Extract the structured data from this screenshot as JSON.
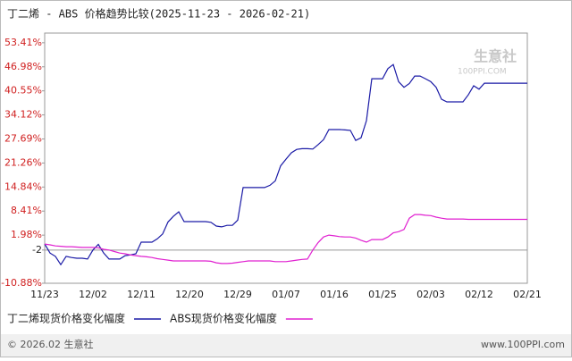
{
  "chart_data": {
    "type": "line",
    "title": "丁二烯 - ABS 价格趋势比较(2025-11-23 - 2026-02-21)",
    "categories": [
      "11/23",
      null,
      null,
      null,
      null,
      null,
      null,
      null,
      null,
      "12/02",
      null,
      null,
      null,
      null,
      null,
      null,
      null,
      null,
      "12/11",
      null,
      null,
      null,
      null,
      null,
      null,
      null,
      null,
      "12/20",
      null,
      null,
      null,
      null,
      null,
      null,
      null,
      null,
      "12/29",
      null,
      null,
      null,
      null,
      null,
      null,
      null,
      null,
      "01/07",
      null,
      null,
      null,
      null,
      null,
      null,
      null,
      null,
      "01/16",
      null,
      null,
      null,
      null,
      null,
      null,
      null,
      null,
      "01/25",
      null,
      null,
      null,
      null,
      null,
      null,
      null,
      null,
      "02/03",
      null,
      null,
      null,
      null,
      null,
      null,
      null,
      null,
      "02/12",
      null,
      null,
      null,
      null,
      null,
      null,
      null,
      null,
      "02/21"
    ],
    "series": [
      {
        "name": "丁二烯现货价格变化幅度",
        "color": "#1a1aa6",
        "values": [
          -0.4,
          -2.8,
          -3.7,
          -5.9,
          -3.7,
          -4.0,
          -4.2,
          -4.2,
          -4.4,
          -2.0,
          -0.5,
          -2.8,
          -4.4,
          -4.4,
          -4.4,
          -3.5,
          -3.3,
          -3.0,
          0.1,
          0.1,
          0.1,
          1.0,
          2.3,
          5.5,
          7.0,
          8.2,
          5.6,
          5.6,
          5.6,
          5.6,
          5.6,
          5.4,
          4.4,
          4.2,
          4.6,
          4.6,
          6.0,
          14.7,
          14.7,
          14.7,
          14.7,
          14.7,
          15.3,
          16.5,
          20.5,
          22.3,
          24.0,
          24.9,
          25.1,
          25.1,
          25.0,
          26.2,
          27.5,
          30.2,
          30.2,
          30.2,
          30.1,
          30.0,
          27.3,
          28.0,
          32.6,
          43.8,
          43.8,
          43.8,
          46.5,
          47.6,
          43.0,
          41.5,
          42.5,
          44.5,
          44.5,
          43.8,
          43.0,
          41.5,
          38.3,
          37.6,
          37.6,
          37.6,
          37.6,
          39.5,
          41.9,
          41.0,
          42.6,
          42.6,
          42.6,
          42.6,
          42.6,
          42.6,
          42.6,
          42.6,
          42.6
        ]
      },
      {
        "name": "ABS现货价格变化幅度",
        "color": "#e020d0",
        "values": [
          -0.4,
          -0.6,
          -0.9,
          -1.0,
          -1.1,
          -1.1,
          -1.2,
          -1.3,
          -1.3,
          -1.3,
          -1.4,
          -1.8,
          -2.0,
          -2.4,
          -2.8,
          -3.0,
          -3.3,
          -3.5,
          -3.7,
          -3.8,
          -4.0,
          -4.3,
          -4.5,
          -4.7,
          -4.9,
          -4.9,
          -4.9,
          -4.9,
          -4.9,
          -4.9,
          -4.9,
          -5.0,
          -5.4,
          -5.6,
          -5.6,
          -5.5,
          -5.3,
          -5.1,
          -4.9,
          -4.9,
          -4.9,
          -4.9,
          -4.9,
          -5.1,
          -5.1,
          -5.1,
          -4.9,
          -4.7,
          -4.5,
          -4.4,
          -2.0,
          0.0,
          1.5,
          2.0,
          1.8,
          1.6,
          1.5,
          1.5,
          1.2,
          0.6,
          0.1,
          0.8,
          0.8,
          0.8,
          1.5,
          2.6,
          2.9,
          3.5,
          6.5,
          7.5,
          7.5,
          7.3,
          7.2,
          6.8,
          6.5,
          6.3,
          6.3,
          6.3,
          6.3,
          6.2,
          6.2,
          6.2,
          6.2,
          6.2,
          6.2,
          6.2,
          6.2,
          6.2,
          6.2,
          6.2,
          6.2
        ]
      }
    ],
    "ylim": [
      -10.88,
      56
    ],
    "yticks": [
      {
        "value": 53.41,
        "label": "53.41%"
      },
      {
        "value": 46.98,
        "label": "46.98%"
      },
      {
        "value": 40.55,
        "label": "40.55%"
      },
      {
        "value": 34.12,
        "label": "34.12%"
      },
      {
        "value": 27.69,
        "label": "27.69%"
      },
      {
        "value": 21.26,
        "label": "21.26%"
      },
      {
        "value": 14.84,
        "label": "14.84%"
      },
      {
        "value": 8.41,
        "label": "8.41%"
      },
      {
        "value": 1.98,
        "label": "1.98%"
      },
      -2,
      {
        "value": -10.88,
        "label": "-10.88%"
      }
    ],
    "hline": -2,
    "watermark": [
      "生意社",
      "100PPI.COM"
    ],
    "footer_left": "© 2026.02 生意社",
    "footer_right": "www.100PPI.com"
  }
}
